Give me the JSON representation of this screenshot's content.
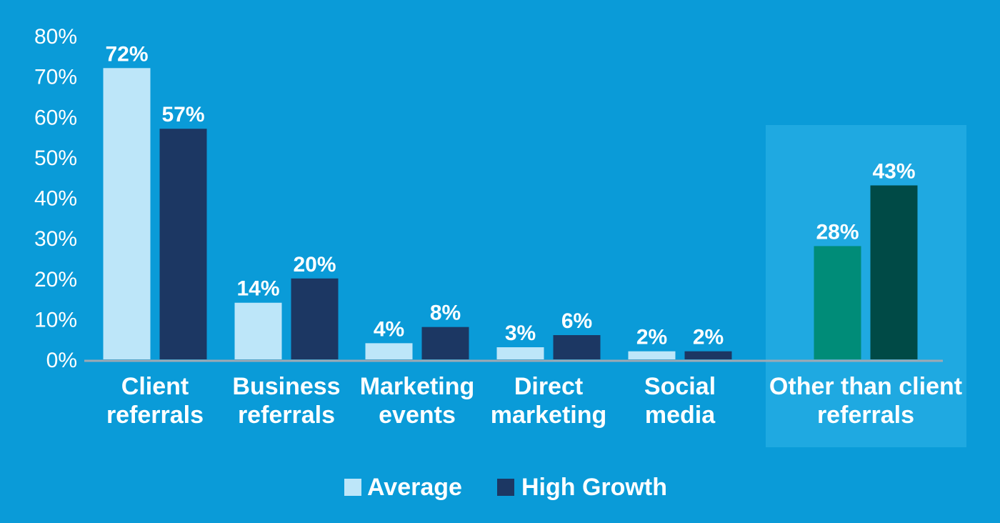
{
  "colors": {
    "background": "#0a9bd8",
    "highlight_panel": "#1fa9e1",
    "average": "#bde6f9",
    "high_growth": "#1c3763",
    "other_average": "#008c78",
    "other_high_growth": "#004a46",
    "axis": "#9fa9b3"
  },
  "chart_data": {
    "type": "bar",
    "categories": [
      "Client referrals",
      "Business referrals",
      "Marketing events",
      "Direct marketing",
      "Social media",
      "Other than client referrals"
    ],
    "category_lines": [
      [
        "Client",
        "referrals"
      ],
      [
        "Business",
        "referrals"
      ],
      [
        "Marketing",
        "events"
      ],
      [
        "Direct",
        "marketing"
      ],
      [
        "Social",
        "media"
      ],
      [
        "Other than client",
        "referrals"
      ]
    ],
    "series": [
      {
        "name": "Average",
        "values": [
          72,
          14,
          4,
          3,
          2,
          28
        ],
        "labels": [
          "72%",
          "14%",
          "4%",
          "3%",
          "2%",
          "28%"
        ]
      },
      {
        "name": "High Growth",
        "values": [
          57,
          20,
          8,
          6,
          2,
          43
        ],
        "labels": [
          "57%",
          "20%",
          "8%",
          "6%",
          "2%",
          "43%"
        ]
      }
    ],
    "yticks": [
      "0%",
      "10%",
      "20%",
      "30%",
      "40%",
      "50%",
      "60%",
      "70%",
      "80%"
    ],
    "ylim": [
      0,
      80
    ],
    "highlighted_category": "Other than client referrals",
    "legend": {
      "position": "bottom",
      "items": [
        "Average",
        "High Growth"
      ]
    },
    "grid": false
  }
}
